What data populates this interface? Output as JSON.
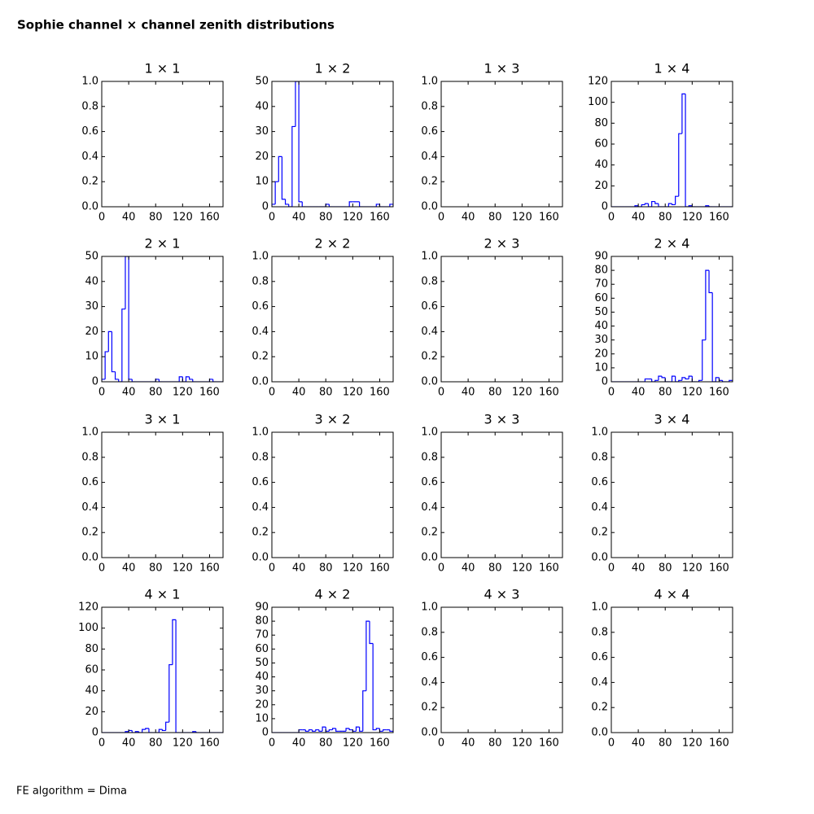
{
  "title": "Sophie channel × channel zenith distributions",
  "footnote": "FE algorithm = Dima",
  "chart_data": [
    {
      "type": "histogram",
      "title": "1 × 1",
      "xlim": [
        0,
        180
      ],
      "xticks": [
        0,
        40,
        80,
        120,
        160
      ],
      "ylim": [
        0,
        1
      ],
      "yticks": [
        {
          "value": 0,
          "label": "0.0"
        },
        0.2,
        0.4,
        0.6,
        0.8,
        {
          "value": 1,
          "label": "1.0"
        }
      ]
    },
    {
      "type": "histogram",
      "title": "1 × 2",
      "color": "#0000ff",
      "xlim": [
        0,
        180
      ],
      "xticks": [
        0,
        40,
        80,
        120,
        160
      ],
      "ylim": [
        0,
        50
      ],
      "yticks": [
        0,
        10,
        20,
        30,
        40,
        50
      ],
      "bins": [
        0,
        5,
        10,
        15,
        20,
        25,
        30,
        35,
        40,
        45,
        50,
        55,
        60,
        65,
        70,
        75,
        80,
        85,
        90,
        95,
        100,
        105,
        110,
        115,
        120,
        125,
        130,
        135,
        140,
        145,
        150,
        155,
        160,
        165,
        170,
        175,
        180
      ],
      "values": [
        1,
        10,
        20,
        3,
        1,
        0,
        32,
        50,
        2,
        0,
        0,
        0,
        0,
        0,
        0,
        0,
        1,
        0,
        0,
        0,
        0,
        0,
        0,
        2,
        2,
        2,
        0,
        0,
        0,
        0,
        0,
        1,
        0,
        0,
        0,
        1
      ]
    },
    {
      "type": "histogram",
      "title": "1 × 3",
      "xlim": [
        0,
        180
      ],
      "xticks": [
        0,
        40,
        80,
        120,
        160
      ],
      "ylim": [
        0,
        1
      ],
      "yticks": [
        {
          "value": 0,
          "label": "0.0"
        },
        0.2,
        0.4,
        0.6,
        0.8,
        {
          "value": 1,
          "label": "1.0"
        }
      ]
    },
    {
      "type": "histogram",
      "title": "1 × 4",
      "color": "#0000ff",
      "xlim": [
        0,
        180
      ],
      "xticks": [
        0,
        40,
        80,
        120,
        160
      ],
      "ylim": [
        0,
        120
      ],
      "yticks": [
        0,
        20,
        40,
        60,
        80,
        100,
        120
      ],
      "bins": [
        0,
        5,
        10,
        15,
        20,
        25,
        30,
        35,
        40,
        45,
        50,
        55,
        60,
        65,
        70,
        75,
        80,
        85,
        90,
        95,
        100,
        105,
        110,
        115,
        120,
        125,
        130,
        135,
        140,
        145,
        150,
        155,
        160,
        165,
        170,
        175,
        180
      ],
      "values": [
        0,
        0,
        0,
        0,
        0,
        0,
        0,
        1,
        0,
        2,
        3,
        0,
        5,
        3,
        0,
        0,
        0,
        3,
        2,
        10,
        70,
        108,
        0,
        1,
        0,
        0,
        0,
        0,
        1,
        0,
        0,
        0,
        0,
        0,
        0,
        0
      ]
    },
    {
      "type": "histogram",
      "title": "2 × 1",
      "color": "#0000ff",
      "xlim": [
        0,
        180
      ],
      "xticks": [
        0,
        40,
        80,
        120,
        160
      ],
      "ylim": [
        0,
        50
      ],
      "yticks": [
        0,
        10,
        20,
        30,
        40,
        50
      ],
      "bins": [
        0,
        5,
        10,
        15,
        20,
        25,
        30,
        35,
        40,
        45,
        50,
        55,
        60,
        65,
        70,
        75,
        80,
        85,
        90,
        95,
        100,
        105,
        110,
        115,
        120,
        125,
        130,
        135,
        140,
        145,
        150,
        155,
        160,
        165,
        170,
        175,
        180
      ],
      "values": [
        1,
        12,
        20,
        4,
        1,
        0,
        29,
        50,
        1,
        0,
        0,
        0,
        0,
        0,
        0,
        0,
        1,
        0,
        0,
        0,
        0,
        0,
        0,
        2,
        0,
        2,
        1,
        0,
        0,
        0,
        0,
        0,
        1,
        0,
        0,
        0
      ]
    },
    {
      "type": "histogram",
      "title": "2 × 2",
      "xlim": [
        0,
        180
      ],
      "xticks": [
        0,
        40,
        80,
        120,
        160
      ],
      "ylim": [
        0,
        1
      ],
      "yticks": [
        {
          "value": 0,
          "label": "0.0"
        },
        0.2,
        0.4,
        0.6,
        0.8,
        {
          "value": 1,
          "label": "1.0"
        }
      ]
    },
    {
      "type": "histogram",
      "title": "2 × 3",
      "xlim": [
        0,
        180
      ],
      "xticks": [
        0,
        40,
        80,
        120,
        160
      ],
      "ylim": [
        0,
        1
      ],
      "yticks": [
        {
          "value": 0,
          "label": "0.0"
        },
        0.2,
        0.4,
        0.6,
        0.8,
        {
          "value": 1,
          "label": "1.0"
        }
      ]
    },
    {
      "type": "histogram",
      "title": "2 × 4",
      "color": "#0000ff",
      "xlim": [
        0,
        180
      ],
      "xticks": [
        0,
        40,
        80,
        120,
        160
      ],
      "ylim": [
        0,
        90
      ],
      "yticks": [
        0,
        10,
        20,
        30,
        40,
        50,
        60,
        70,
        80,
        90
      ],
      "bins": [
        0,
        5,
        10,
        15,
        20,
        25,
        30,
        35,
        40,
        45,
        50,
        55,
        60,
        65,
        70,
        75,
        80,
        85,
        90,
        95,
        100,
        105,
        110,
        115,
        120,
        125,
        130,
        135,
        140,
        145,
        150,
        155,
        160,
        165,
        170,
        175,
        180
      ],
      "values": [
        0,
        0,
        0,
        0,
        0,
        0,
        0,
        0,
        0,
        0,
        2,
        2,
        0,
        1,
        4,
        3,
        0,
        0,
        4,
        0,
        1,
        3,
        2,
        4,
        0,
        0,
        1,
        30,
        80,
        64,
        0,
        3,
        1,
        0,
        0,
        1
      ]
    },
    {
      "type": "histogram",
      "title": "3 × 1",
      "xlim": [
        0,
        180
      ],
      "xticks": [
        0,
        40,
        80,
        120,
        160
      ],
      "ylim": [
        0,
        1
      ],
      "yticks": [
        {
          "value": 0,
          "label": "0.0"
        },
        0.2,
        0.4,
        0.6,
        0.8,
        {
          "value": 1,
          "label": "1.0"
        }
      ]
    },
    {
      "type": "histogram",
      "title": "3 × 2",
      "xlim": [
        0,
        180
      ],
      "xticks": [
        0,
        40,
        80,
        120,
        160
      ],
      "ylim": [
        0,
        1
      ],
      "yticks": [
        {
          "value": 0,
          "label": "0.0"
        },
        0.2,
        0.4,
        0.6,
        0.8,
        {
          "value": 1,
          "label": "1.0"
        }
      ]
    },
    {
      "type": "histogram",
      "title": "3 × 3",
      "xlim": [
        0,
        180
      ],
      "xticks": [
        0,
        40,
        80,
        120,
        160
      ],
      "ylim": [
        0,
        1
      ],
      "yticks": [
        {
          "value": 0,
          "label": "0.0"
        },
        0.2,
        0.4,
        0.6,
        0.8,
        {
          "value": 1,
          "label": "1.0"
        }
      ]
    },
    {
      "type": "histogram",
      "title": "3 × 4",
      "xlim": [
        0,
        180
      ],
      "xticks": [
        0,
        40,
        80,
        120,
        160
      ],
      "ylim": [
        0,
        1
      ],
      "yticks": [
        {
          "value": 0,
          "label": "0.0"
        },
        0.2,
        0.4,
        0.6,
        0.8,
        {
          "value": 1,
          "label": "1.0"
        }
      ]
    },
    {
      "type": "histogram",
      "title": "4 × 1",
      "color": "#0000ff",
      "xlim": [
        0,
        180
      ],
      "xticks": [
        0,
        40,
        80,
        120,
        160
      ],
      "ylim": [
        0,
        120
      ],
      "yticks": [
        0,
        20,
        40,
        60,
        80,
        100,
        120
      ],
      "bins": [
        0,
        5,
        10,
        15,
        20,
        25,
        30,
        35,
        40,
        45,
        50,
        55,
        60,
        65,
        70,
        75,
        80,
        85,
        90,
        95,
        100,
        105,
        110,
        115,
        120,
        125,
        130,
        135,
        140,
        145,
        150,
        155,
        160,
        165,
        170,
        175,
        180
      ],
      "values": [
        0,
        0,
        0,
        0,
        0,
        0,
        0,
        1,
        2,
        0,
        1,
        0,
        3,
        4,
        0,
        0,
        0,
        3,
        2,
        10,
        65,
        108,
        0,
        0,
        0,
        0,
        0,
        1,
        0,
        0,
        0,
        0,
        0,
        0,
        0,
        0
      ]
    },
    {
      "type": "histogram",
      "title": "4 × 2",
      "color": "#0000ff",
      "xlim": [
        0,
        180
      ],
      "xticks": [
        0,
        40,
        80,
        120,
        160
      ],
      "ylim": [
        0,
        90
      ],
      "yticks": [
        0,
        10,
        20,
        30,
        40,
        50,
        60,
        70,
        80,
        90
      ],
      "bins": [
        0,
        5,
        10,
        15,
        20,
        25,
        30,
        35,
        40,
        45,
        50,
        55,
        60,
        65,
        70,
        75,
        80,
        85,
        90,
        95,
        100,
        105,
        110,
        115,
        120,
        125,
        130,
        135,
        140,
        145,
        150,
        155,
        160,
        165,
        170,
        175,
        180
      ],
      "values": [
        0,
        0,
        0,
        0,
        0,
        0,
        0,
        0,
        2,
        2,
        1,
        2,
        1,
        2,
        1,
        4,
        1,
        2,
        3,
        1,
        1,
        1,
        3,
        2,
        1,
        4,
        1,
        30,
        80,
        64,
        2,
        3,
        1,
        2,
        2,
        1
      ]
    },
    {
      "type": "histogram",
      "title": "4 × 3",
      "xlim": [
        0,
        180
      ],
      "xticks": [
        0,
        40,
        80,
        120,
        160
      ],
      "ylim": [
        0,
        1
      ],
      "yticks": [
        {
          "value": 0,
          "label": "0.0"
        },
        0.2,
        0.4,
        0.6,
        0.8,
        {
          "value": 1,
          "label": "1.0"
        }
      ]
    },
    {
      "type": "histogram",
      "title": "4 × 4",
      "xlim": [
        0,
        180
      ],
      "xticks": [
        0,
        40,
        80,
        120,
        160
      ],
      "ylim": [
        0,
        1
      ],
      "yticks": [
        {
          "value": 0,
          "label": "0.0"
        },
        0.2,
        0.4,
        0.6,
        0.8,
        {
          "value": 1,
          "label": "1.0"
        }
      ]
    }
  ]
}
